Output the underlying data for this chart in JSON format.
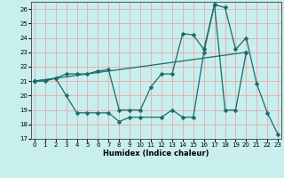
{
  "xlabel": "Humidex (Indice chaleur)",
  "xlim": [
    0,
    23
  ],
  "ylim": [
    17,
    26.5
  ],
  "yticks": [
    17,
    18,
    19,
    20,
    21,
    22,
    23,
    24,
    25,
    26
  ],
  "xticks": [
    0,
    1,
    2,
    3,
    4,
    5,
    6,
    7,
    8,
    9,
    10,
    11,
    12,
    13,
    14,
    15,
    16,
    17,
    18,
    19,
    20,
    21,
    22,
    23
  ],
  "bg_color": "#c8eeee",
  "grid_color": "#e8a8a8",
  "line_color": "#1a6b6b",
  "line1_x": [
    0,
    1,
    2,
    3,
    4,
    5,
    6,
    7,
    8,
    9,
    10,
    11,
    12,
    13,
    14,
    15,
    16,
    17,
    18,
    19,
    20,
    21,
    22,
    23
  ],
  "line1_y": [
    21,
    21,
    21.2,
    21.5,
    21.5,
    21.5,
    21.7,
    21.8,
    19.0,
    19.0,
    19.0,
    20.6,
    21.5,
    21.5,
    24.3,
    24.2,
    23.2,
    26.3,
    26.1,
    23.2,
    24.0,
    20.8,
    18.8,
    17.3
  ],
  "line2_x": [
    0,
    2,
    3,
    4,
    5,
    6,
    7,
    8,
    9,
    10,
    12,
    13,
    14,
    15,
    16,
    17,
    18,
    19,
    20
  ],
  "line2_y": [
    21,
    21.2,
    20.0,
    18.8,
    18.8,
    18.8,
    18.8,
    18.2,
    18.5,
    18.5,
    18.5,
    19.0,
    18.5,
    18.5,
    23.0,
    26.3,
    19.0,
    19.0,
    23.0
  ],
  "line3_x": [
    0,
    20
  ],
  "line3_y": [
    21,
    23.0
  ]
}
